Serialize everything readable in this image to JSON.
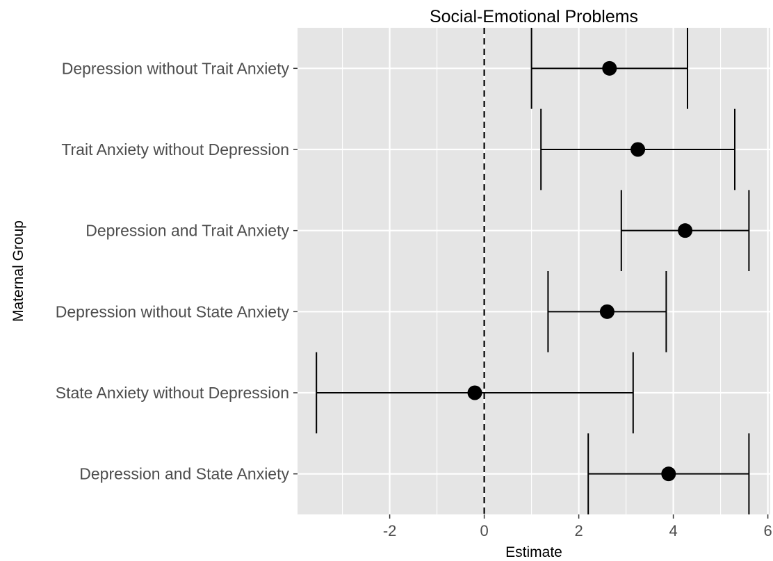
{
  "chart_data": {
    "type": "scatter",
    "subtype": "forest-plot-with-error-bars",
    "title": "Social-Emotional Problems",
    "xlabel": "Estimate",
    "ylabel": "Maternal Group",
    "xlim": [
      -3.95,
      6.05
    ],
    "xticks": [
      -2,
      0,
      2,
      4,
      6
    ],
    "reference_line": {
      "x": 0,
      "style": "dashed"
    },
    "grid": true,
    "background": "#e5e5e5",
    "categories": [
      "Depression without Trait Anxiety",
      "Trait Anxiety without Depression",
      "Depression and Trait Anxiety",
      "Depression without State Anxiety",
      "State Anxiety without Depression",
      "Depression and State Anxiety"
    ],
    "estimates": [
      2.65,
      3.25,
      4.25,
      2.6,
      -0.2,
      3.9
    ],
    "lower": [
      1.0,
      1.2,
      2.9,
      1.35,
      -3.55,
      2.2
    ],
    "upper": [
      4.3,
      5.3,
      5.6,
      3.85,
      3.15,
      5.6
    ]
  }
}
